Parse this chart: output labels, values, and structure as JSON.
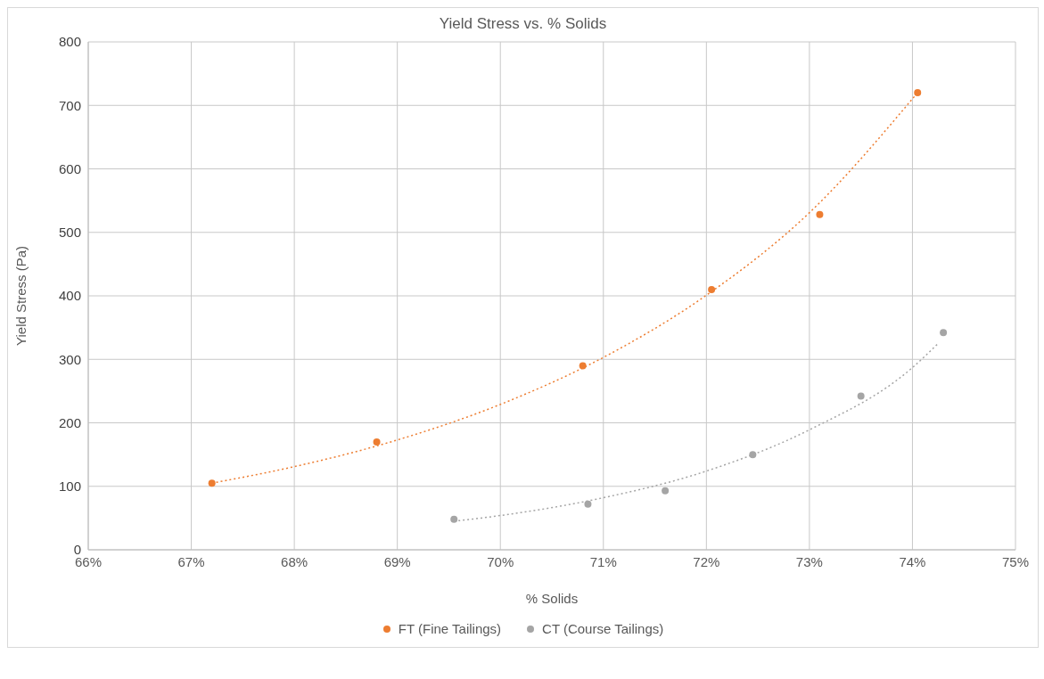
{
  "chart_data": {
    "type": "scatter",
    "title": "Yield Stress vs. % Solids",
    "xlabel": "% Solids",
    "ylabel": "Yield Stress (Pa)",
    "xlim": [
      66,
      75
    ],
    "xticks": [
      {
        "value": 66,
        "label": "66%"
      },
      {
        "value": 67,
        "label": "67%"
      },
      {
        "value": 68,
        "label": "68%"
      },
      {
        "value": 69,
        "label": "69%"
      },
      {
        "value": 70,
        "label": "70%"
      },
      {
        "value": 71,
        "label": "71%"
      },
      {
        "value": 72,
        "label": "72%"
      },
      {
        "value": 73,
        "label": "73%"
      },
      {
        "value": 74,
        "label": "74%"
      },
      {
        "value": 75,
        "label": "75%"
      }
    ],
    "ylim": [
      0,
      800
    ],
    "yticks": [
      0,
      100,
      200,
      300,
      400,
      500,
      600,
      700,
      800
    ],
    "grid": true,
    "legend": "bottom",
    "marker": "circle",
    "series": [
      {
        "name": "FT (Fine Tailings)",
        "color": "#ed7d31",
        "x": [
          67.2,
          68.8,
          70.8,
          72.05,
          73.1,
          74.05
        ],
        "values": [
          105,
          170,
          290,
          410,
          528,
          720
        ]
      },
      {
        "name": "CT (Course Tailings)",
        "color": "#a5a5a5",
        "x": [
          69.55,
          70.85,
          71.6,
          72.45,
          73.5,
          74.3
        ],
        "values": [
          48,
          72,
          93,
          150,
          242,
          342
        ]
      },
      {
        "type": "line",
        "color": "#ed7d31",
        "line_style": "dotted",
        "marker": "none",
        "x": [
          67.2,
          68,
          69,
          70,
          71,
          72,
          73,
          74.05
        ],
        "values": [
          105,
          131,
          173,
          229,
          303,
          401,
          531,
          720
        ]
      },
      {
        "type": "line",
        "color": "#a5a5a5",
        "line_style": "dotted",
        "marker": "none",
        "x": [
          69.55,
          70,
          71,
          72,
          73,
          74,
          74.25
        ],
        "values": [
          45,
          54,
          82,
          124,
          189,
          287,
          325
        ]
      }
    ]
  }
}
